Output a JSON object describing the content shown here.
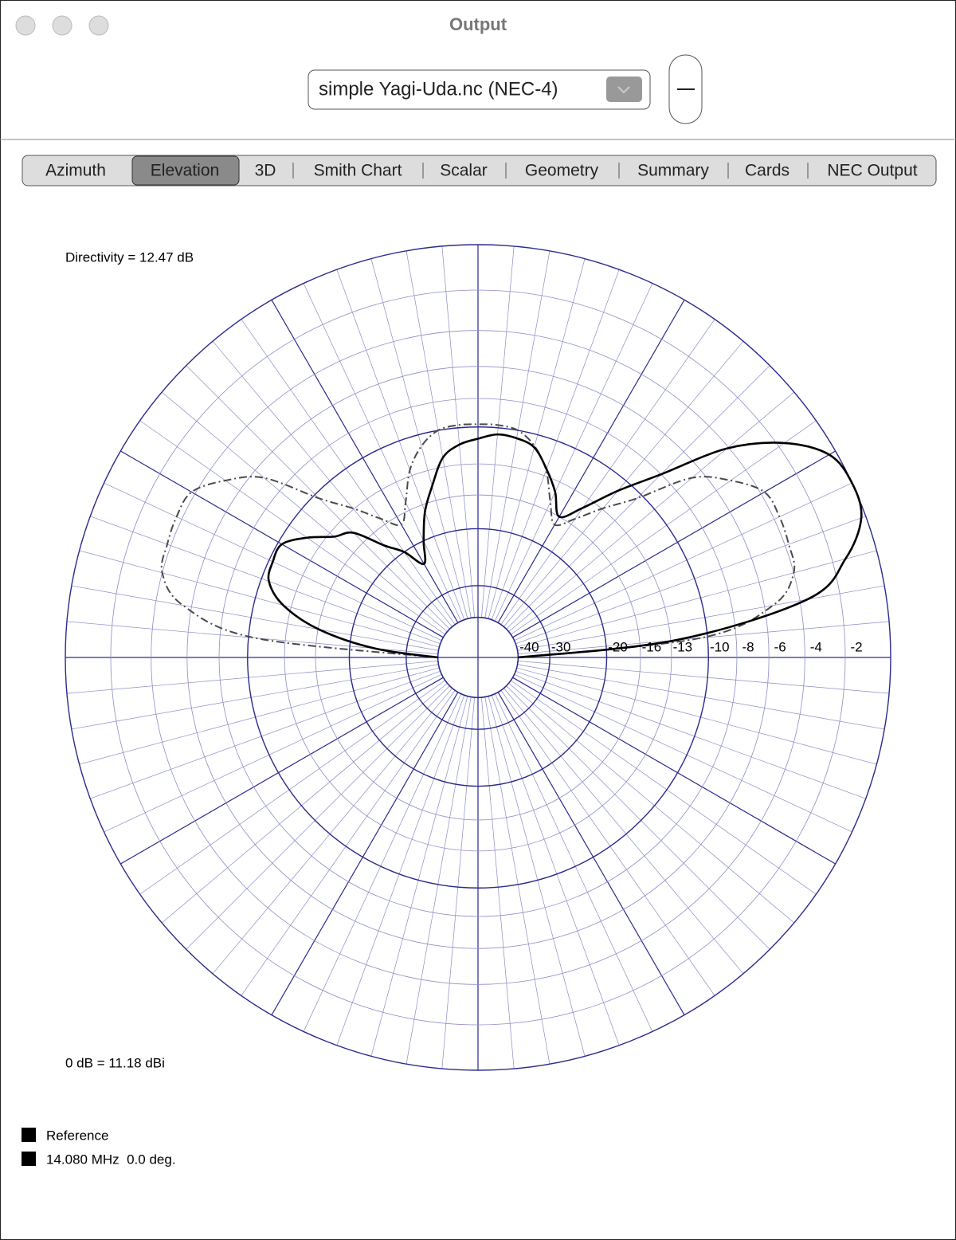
{
  "window": {
    "title": "Output"
  },
  "toolbar": {
    "file_popup": "simple Yagi-Uda.nc (NEC-4)"
  },
  "tabs": {
    "items": [
      "Azimuth",
      "Elevation",
      "3D",
      "Smith Chart",
      "Scalar",
      "Geometry",
      "Summary",
      "Cards",
      "NEC Output"
    ],
    "selected": 1
  },
  "chart_data": {
    "type": "polar",
    "scale": "arrl-log",
    "annotations": [
      "Directivity = 12.47 dB",
      "0 dB = 11.18 dBi"
    ],
    "theta": [
      0,
      5,
      10,
      15,
      20,
      25,
      30,
      35,
      40,
      45,
      50,
      55,
      60,
      65,
      70,
      75,
      80,
      85,
      90,
      95,
      100,
      105,
      110,
      115,
      120,
      125,
      130,
      135,
      140,
      145,
      150,
      155,
      160,
      165,
      170,
      175,
      180
    ],
    "rlim": [
      -40,
      0
    ],
    "rticks": [
      -40,
      -30,
      -20,
      -16,
      -13,
      -10,
      -8,
      -6,
      -4,
      -2
    ],
    "legend_swatch_color": "#000000",
    "series": [
      {
        "name": "Reference",
        "color": "#4a4a4a",
        "style": "dashdot",
        "values": [
          -40,
          -10.5,
          -5.5,
          -4,
          -3.8,
          -3.7,
          -3.8,
          -5,
          -6.7,
          -10.4,
          -12.9,
          -15.3,
          -17,
          -15.1,
          -12.5,
          -10.9,
          -10,
          -9.8,
          -9.8,
          -9.8,
          -10,
          -10.9,
          -12.5,
          -15.1,
          -17,
          -15.3,
          -12.9,
          -10.4,
          -6.7,
          -5,
          -3.8,
          -3.7,
          -3.8,
          -4,
          -5.5,
          -10.5,
          -40
        ]
      },
      {
        "name": "14.080 MHz  0.0 deg.",
        "color": "#000000",
        "style": "solid",
        "values": [
          -40,
          -12.5,
          -3.6,
          -1.4,
          -0.2,
          0,
          -0.3,
          -1.7,
          -4.1,
          -8,
          -11,
          -14,
          -16,
          -14,
          -12.4,
          -11,
          -10.6,
          -10.5,
          -10.9,
          -11.3,
          -12.2,
          -14.5,
          -16.8,
          -20,
          -23,
          -20,
          -17.8,
          -14.6,
          -13.5,
          -11.7,
          -10.3,
          -10.3,
          -10.6,
          -12.3,
          -16.1,
          -23.7,
          -40
        ]
      }
    ]
  }
}
